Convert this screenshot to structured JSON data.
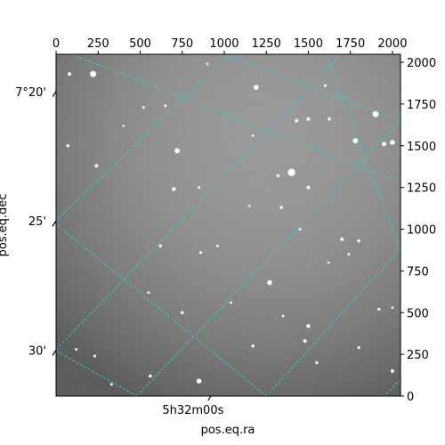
{
  "chart_data": {
    "type": "image",
    "description_free": true,
    "image_style": "grayscale star field",
    "xlabel": "pos.eq.ra",
    "ylabel": "pos.eq.dec",
    "xlim": [
      0,
      2048
    ],
    "ylim": [
      0,
      2048
    ],
    "top_ticks": [
      0,
      250,
      500,
      750,
      1000,
      1250,
      1500,
      1750,
      2000
    ],
    "top_tick_labels": [
      "0",
      "250",
      "500",
      "750",
      "1000",
      "1250",
      "1500",
      "1750",
      "2000"
    ],
    "right_ticks": [
      0,
      250,
      500,
      750,
      1000,
      1250,
      1500,
      1750,
      2000
    ],
    "right_tick_labels": [
      "0",
      "250",
      "500",
      "750",
      "1000",
      "1250",
      "1500",
      "1750",
      "2000"
    ],
    "dec_tick_labels": [
      {
        "text": "7°20'",
        "y": 1825
      },
      {
        "text": "25'",
        "y": 1050
      },
      {
        "text": "30'",
        "y": 275
      }
    ],
    "ra_tick_labels": [
      {
        "text": "5h32m00s",
        "x": 920
      }
    ],
    "grid_color": "#2fcfcf",
    "grid_lines": [
      {
        "a": [
          90,
          2048
        ],
        "b": [
          2048,
          1280
        ]
      },
      {
        "a": [
          0,
          1050
        ],
        "b": [
          1030,
          2048
        ]
      },
      {
        "a": [
          0,
          280
        ],
        "b": [
          1700,
          2048
        ]
      },
      {
        "a": [
          480,
          0
        ],
        "b": [
          2048,
          1650
        ]
      },
      {
        "a": [
          1250,
          0
        ],
        "b": [
          2048,
          880
        ]
      },
      {
        "a": [
          480,
          0
        ],
        "b": [
          0,
          270
        ]
      },
      {
        "a": [
          1250,
          0
        ],
        "b": [
          0,
          1030
        ]
      },
      {
        "a": [
          2048,
          1650
        ],
        "b": [
          1000,
          2048
        ]
      },
      {
        "a": [
          2048,
          880
        ],
        "b": [
          1600,
          2048
        ]
      },
      {
        "a": [
          2048,
          100
        ],
        "b": [
          1950,
          0
        ]
      }
    ],
    "stars": [
      [
        220,
        1930,
        3.5
      ],
      [
        1900,
        1690,
        3.5
      ],
      [
        1400,
        1340,
        4.2
      ],
      [
        720,
        1470,
        3
      ],
      [
        1780,
        1530,
        3
      ],
      [
        1190,
        1850,
        2.8
      ],
      [
        1950,
        1510,
        2.5
      ],
      [
        2000,
        1520,
        2.8
      ],
      [
        1430,
        1650,
        2
      ],
      [
        1500,
        1660,
        2
      ],
      [
        1625,
        1660,
        1.8
      ],
      [
        1500,
        1250,
        2
      ],
      [
        700,
        1240,
        2.2
      ],
      [
        240,
        1380,
        2
      ],
      [
        1320,
        1320,
        1.8
      ],
      [
        1340,
        1130,
        1.8
      ],
      [
        1700,
        940,
        2
      ],
      [
        1800,
        930,
        1.8
      ],
      [
        1450,
        1000,
        1.5
      ],
      [
        850,
        1250,
        1.5
      ],
      [
        620,
        900,
        1.8
      ],
      [
        860,
        860,
        1.6
      ],
      [
        1270,
        680,
        2.8
      ],
      [
        750,
        500,
        1.8
      ],
      [
        1500,
        420,
        2.2
      ],
      [
        1480,
        330,
        2
      ],
      [
        1170,
        300,
        1.8
      ],
      [
        1800,
        290,
        1.6
      ],
      [
        2000,
        150,
        2
      ],
      [
        850,
        90,
        2.8
      ],
      [
        560,
        120,
        1.8
      ],
      [
        230,
        240,
        1.6
      ],
      [
        120,
        280,
        1.5
      ],
      [
        1550,
        200,
        1.6
      ],
      [
        330,
        70,
        1.5
      ],
      [
        70,
        1500,
        1.8
      ],
      [
        520,
        1730,
        1.5
      ],
      [
        1920,
        520,
        1.6
      ],
      [
        1740,
        850,
        1.5
      ],
      [
        650,
        1740,
        1.5
      ],
      [
        960,
        900,
        1.5
      ],
      [
        550,
        620,
        1.5
      ],
      [
        1040,
        560,
        1.4
      ],
      [
        1620,
        800,
        1.4
      ],
      [
        1170,
        1560,
        1.4
      ],
      [
        1600,
        1860,
        1.6
      ],
      [
        80,
        1930,
        2
      ],
      [
        1150,
        1140,
        1.3
      ],
      [
        2000,
        530,
        1.4
      ],
      [
        1350,
        480,
        1.4
      ],
      [
        900,
        1990,
        1.4
      ],
      [
        400,
        1620,
        1.3
      ]
    ]
  }
}
